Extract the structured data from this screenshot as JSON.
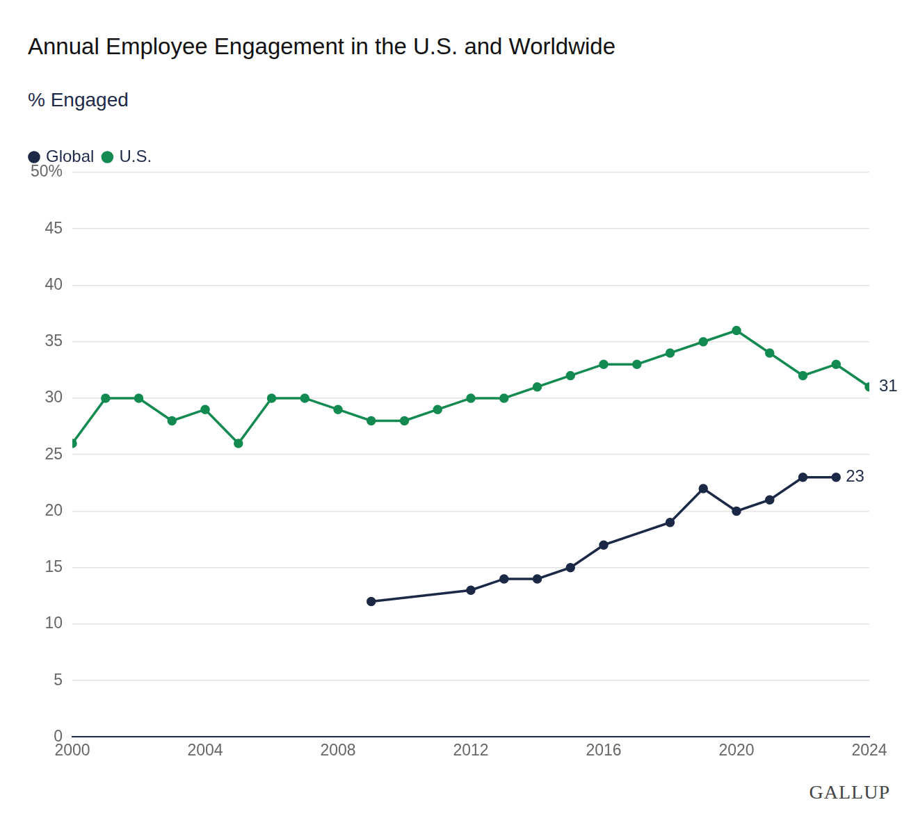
{
  "chart_data": {
    "type": "line",
    "title": "Annual Employee Engagement in the U.S. and Worldwide",
    "subtitle": "% Engaged",
    "source": "GALLUP",
    "x": [
      2000,
      2001,
      2002,
      2003,
      2004,
      2005,
      2006,
      2007,
      2008,
      2009,
      2010,
      2011,
      2012,
      2013,
      2014,
      2015,
      2016,
      2017,
      2018,
      2019,
      2020,
      2021,
      2022,
      2023,
      2024
    ],
    "series": [
      {
        "name": "Global",
        "color": "#1b2846",
        "marker": "circle",
        "values": [
          null,
          null,
          null,
          null,
          null,
          null,
          null,
          null,
          null,
          12,
          null,
          null,
          13,
          14,
          14,
          15,
          17,
          null,
          19,
          22,
          20,
          21,
          23,
          23,
          null
        ]
      },
      {
        "name": "U.S.",
        "color": "#138a4f",
        "marker": "circle",
        "values": [
          26,
          30,
          30,
          28,
          29,
          26,
          30,
          30,
          29,
          28,
          28,
          29,
          30,
          30,
          31,
          32,
          33,
          33,
          34,
          35,
          36,
          34,
          32,
          33,
          31
        ]
      }
    ],
    "xlim": [
      2000,
      2024
    ],
    "xticks": [
      2000,
      2004,
      2008,
      2012,
      2016,
      2020,
      2024
    ],
    "ylim": [
      0,
      50
    ],
    "yticks": [
      0,
      5,
      10,
      15,
      20,
      25,
      30,
      35,
      40,
      45,
      {
        "value": 50,
        "label": "50%"
      }
    ],
    "grid": "y",
    "legend": "top-left",
    "annotations": [
      {
        "series": "U.S.",
        "x": 2024,
        "text": "31"
      },
      {
        "series": "Global",
        "x": 2023,
        "text": "23"
      }
    ]
  }
}
